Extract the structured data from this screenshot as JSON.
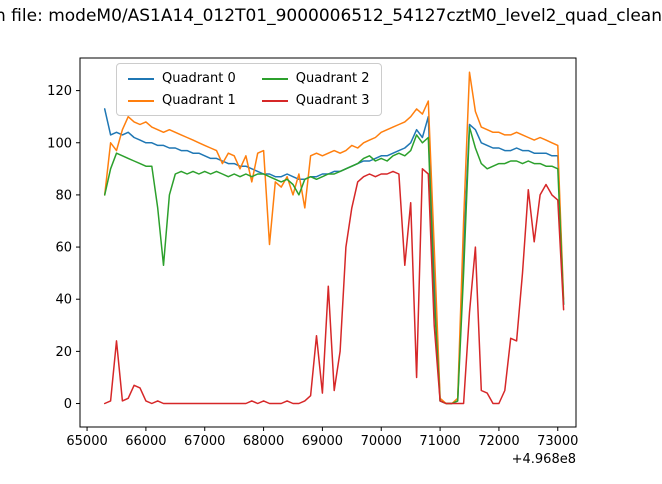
{
  "title": "n file: modeM0/AS1A14_012T01_9000006512_54127cztM0_level2_quad_clean",
  "chart_data": {
    "type": "line",
    "title": "n file: modeM0/AS1A14_012T01_9000006512_54127cztM0_level2_quad_clean",
    "xlabel": "",
    "ylabel": "",
    "x_offset_label": "+4.968e8",
    "xlim": [
      64880,
      73310
    ],
    "ylim": [
      -9,
      132.5
    ],
    "xticks": [
      65000,
      66000,
      67000,
      68000,
      69000,
      70000,
      71000,
      72000,
      73000
    ],
    "yticks": [
      0,
      20,
      40,
      60,
      80,
      100,
      120
    ],
    "grid": false,
    "legend_position": "upper left, 2 columns",
    "x": [
      65300,
      65400,
      65500,
      65600,
      65700,
      65800,
      65900,
      66000,
      66100,
      66200,
      66300,
      66400,
      66500,
      66600,
      66700,
      66800,
      66900,
      67000,
      67100,
      67200,
      67300,
      67400,
      67500,
      67600,
      67700,
      67800,
      67900,
      68000,
      68100,
      68200,
      68300,
      68400,
      68500,
      68600,
      68700,
      68800,
      68900,
      69000,
      69100,
      69200,
      69300,
      69400,
      69500,
      69600,
      69700,
      69800,
      69900,
      70000,
      70100,
      70200,
      70300,
      70400,
      70500,
      70600,
      70700,
      70800,
      70900,
      71000,
      71100,
      71200,
      71300,
      71400,
      71500,
      71600,
      71700,
      71800,
      71900,
      72000,
      72100,
      72200,
      72300,
      72400,
      72500,
      72600,
      72700,
      72800,
      72900,
      73000,
      73100
    ],
    "series": [
      {
        "name": "Quadrant 0",
        "color": "#1f77b4",
        "values": [
          113,
          103,
          104,
          103,
          104,
          102,
          101,
          100,
          100,
          99,
          99,
          98,
          98,
          97,
          97,
          96,
          96,
          95,
          94,
          94,
          93,
          92,
          92,
          91,
          91,
          90,
          89,
          88,
          88,
          87,
          87,
          88,
          87,
          86,
          86,
          87,
          87,
          88,
          88,
          89,
          89,
          90,
          91,
          92,
          93,
          93,
          94,
          95,
          95,
          96,
          97,
          98,
          100,
          105,
          102,
          110,
          50,
          1,
          0,
          0,
          1,
          60,
          107,
          105,
          100,
          99,
          98,
          98,
          97,
          97,
          98,
          97,
          97,
          96,
          96,
          96,
          95,
          95,
          38
        ]
      },
      {
        "name": "Quadrant 1",
        "color": "#ff7f0e",
        "values": [
          80,
          100,
          97,
          105,
          110,
          108,
          107,
          108,
          106,
          105,
          104,
          105,
          104,
          103,
          102,
          101,
          100,
          99,
          98,
          97,
          92,
          96,
          95,
          90,
          95,
          85,
          96,
          97,
          61,
          85,
          83,
          87,
          80,
          88,
          75,
          95,
          96,
          95,
          96,
          97,
          96,
          97,
          99,
          98,
          100,
          101,
          102,
          104,
          105,
          106,
          107,
          108,
          110,
          113,
          111,
          116,
          60,
          2,
          0,
          0,
          2,
          70,
          127,
          112,
          106,
          105,
          104,
          104,
          103,
          103,
          104,
          103,
          102,
          101,
          102,
          101,
          100,
          99,
          40
        ]
      },
      {
        "name": "Quadrant 2",
        "color": "#2ca02c",
        "values": [
          80,
          90,
          96,
          95,
          94,
          93,
          92,
          91,
          91,
          75,
          53,
          80,
          88,
          89,
          88,
          89,
          88,
          89,
          88,
          89,
          88,
          87,
          88,
          87,
          88,
          87,
          88,
          88,
          87,
          86,
          85,
          86,
          84,
          80,
          86,
          87,
          86,
          87,
          88,
          88,
          89,
          90,
          91,
          92,
          94,
          95,
          93,
          94,
          93,
          95,
          96,
          95,
          97,
          103,
          100,
          102,
          40,
          1,
          0,
          0,
          1,
          50,
          106,
          98,
          92,
          90,
          91,
          92,
          92,
          93,
          93,
          92,
          93,
          92,
          92,
          91,
          91,
          90,
          38
        ]
      },
      {
        "name": "Quadrant 3",
        "color": "#d62728",
        "values": [
          0,
          1,
          24,
          1,
          2,
          7,
          6,
          1,
          0,
          1,
          0,
          0,
          0,
          0,
          0,
          0,
          0,
          0,
          0,
          0,
          0,
          0,
          0,
          0,
          0,
          1,
          0,
          1,
          0,
          0,
          0,
          1,
          0,
          0,
          1,
          3,
          26,
          4,
          45,
          5,
          20,
          60,
          75,
          85,
          87,
          88,
          87,
          88,
          88,
          89,
          88,
          53,
          77,
          10,
          90,
          88,
          30,
          1,
          0,
          0,
          0,
          0,
          35,
          60,
          5,
          4,
          0,
          0,
          5,
          25,
          24,
          50,
          82,
          62,
          80,
          84,
          80,
          78,
          36
        ]
      }
    ]
  }
}
